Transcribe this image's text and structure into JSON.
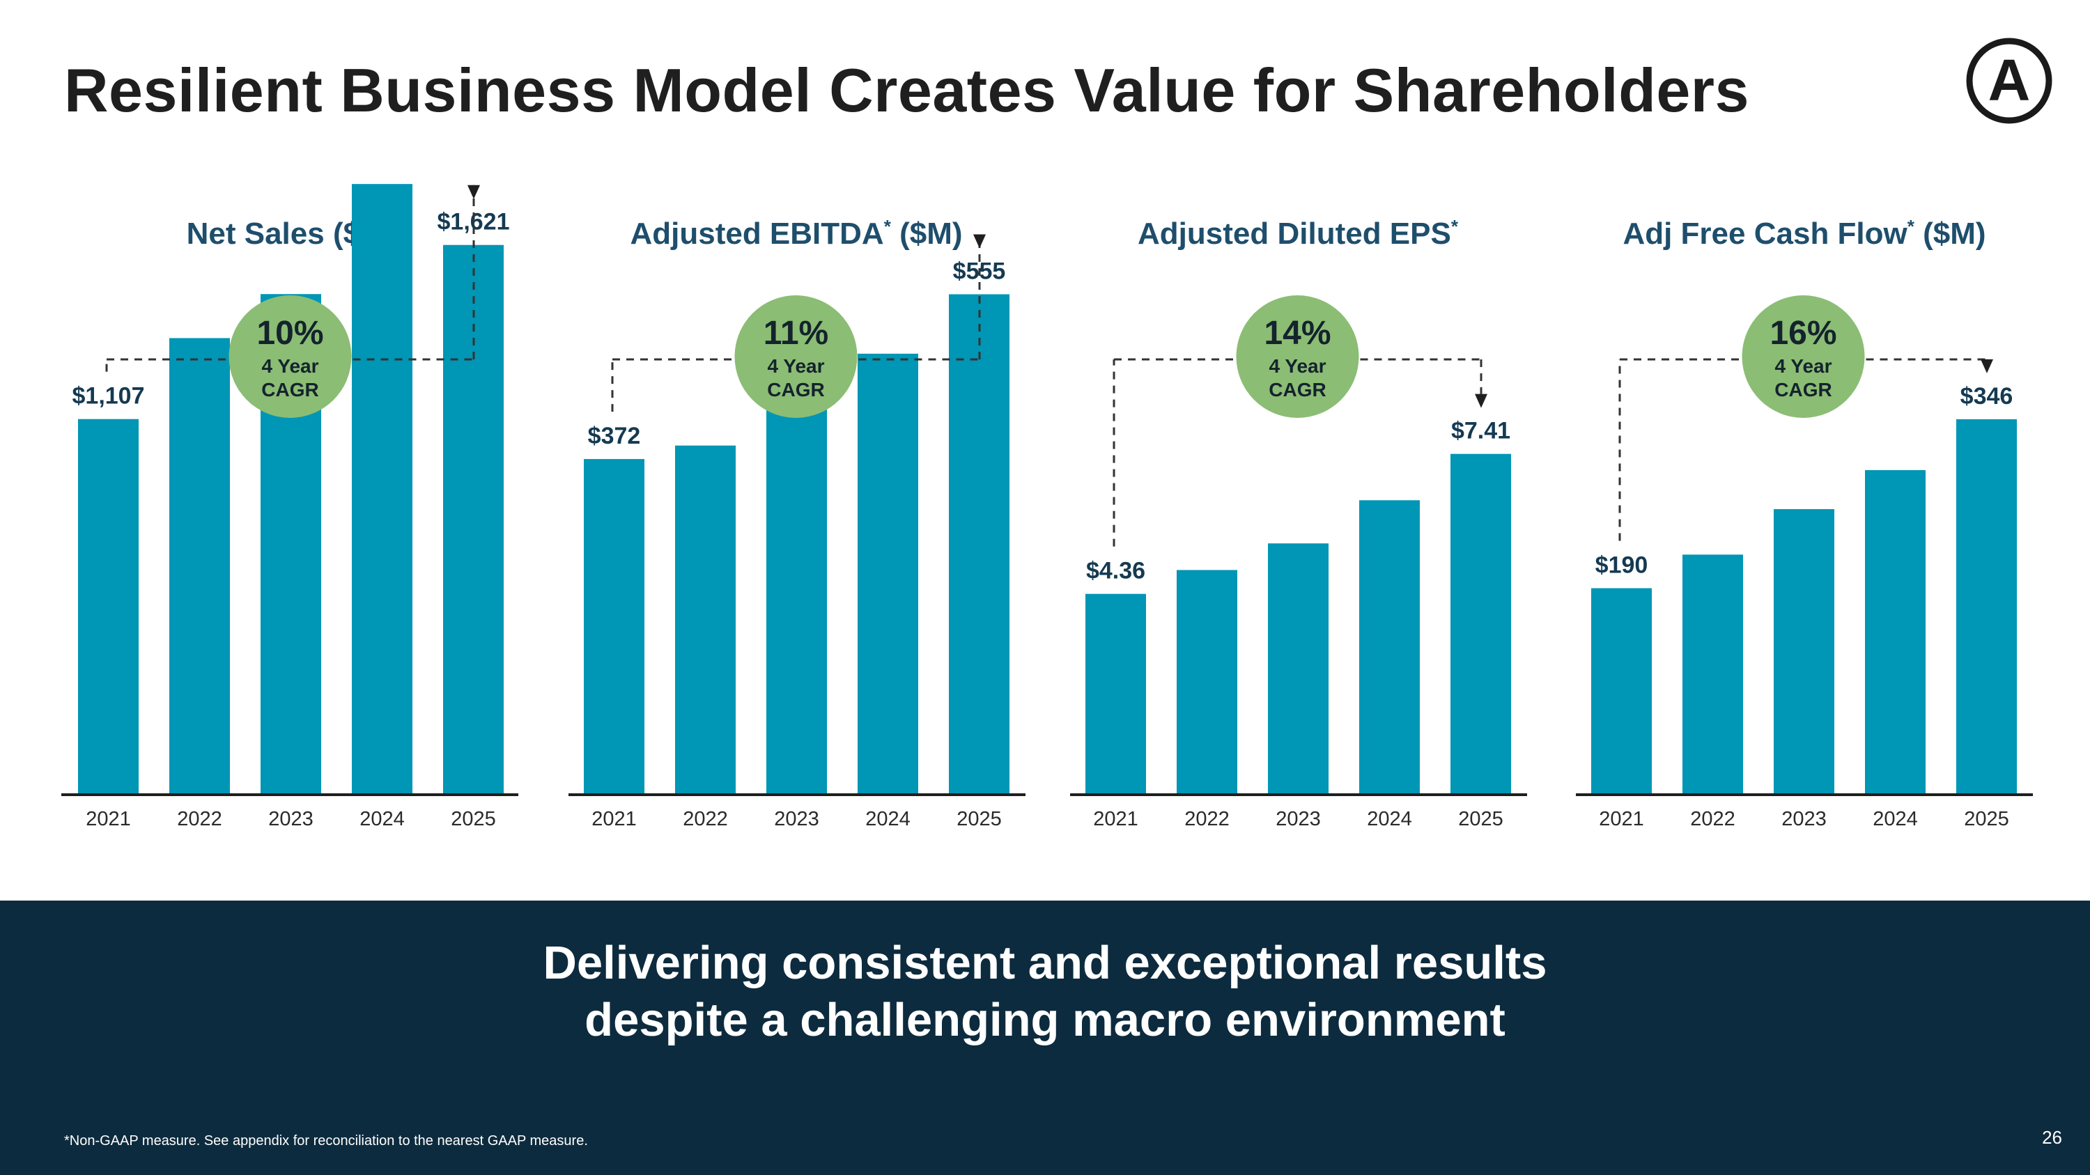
{
  "slide": {
    "title": "Resilient Business Model Creates Value for Shareholders",
    "banner_line1": "Delivering consistent and exceptional results",
    "banner_line2": "despite a challenging macro environment",
    "footnote": "*Non-GAAP measure. See  appendix for reconciliation to the nearest GAAP measure.",
    "page_number": "26",
    "logo_letter": "A"
  },
  "colors": {
    "bar": "#0096b5",
    "title_text": "#1e4e6c",
    "badge": "#8bbd74",
    "banner": "#0d2b3e",
    "axis": "#1f1f1f"
  },
  "chart_data": [
    {
      "type": "bar",
      "title": "Net Sales ($M)",
      "categories": [
        "2021",
        "2022",
        "2023",
        "2024",
        "2025"
      ],
      "values": [
        1107,
        1346,
        1476,
        1801,
        1621
      ],
      "value_labels": [
        "$1,107",
        "",
        "",
        "",
        "$1,621"
      ],
      "cagr": {
        "value": "10%",
        "line1": "4 Year",
        "line2": "CAGR"
      }
    },
    {
      "type": "bar",
      "title": "Adjusted EBITDA",
      "title_mark": "*",
      "title_suffix": " ($M)",
      "categories": [
        "2021",
        "2022",
        "2023",
        "2024",
        "2025"
      ],
      "values": [
        372,
        387,
        433,
        489,
        555
      ],
      "value_labels": [
        "$372",
        "",
        "",
        "",
        "$555"
      ],
      "cagr": {
        "value": "11%",
        "line1": "4 Year",
        "line2": "CAGR"
      }
    },
    {
      "type": "bar",
      "title": "Adjusted Diluted EPS",
      "title_mark": "*",
      "title_suffix": "",
      "categories": [
        "2021",
        "2022",
        "2023",
        "2024",
        "2025"
      ],
      "values": [
        4.36,
        4.88,
        5.46,
        6.4,
        7.41
      ],
      "value_labels": [
        "$4.36",
        "",
        "",
        "",
        "$7.41"
      ],
      "cagr": {
        "value": "14%",
        "line1": "4 Year",
        "line2": "CAGR"
      }
    },
    {
      "type": "bar",
      "title": "Adj Free Cash Flow",
      "title_mark": "*",
      "title_suffix": " ($M)",
      "categories": [
        "2021",
        "2022",
        "2023",
        "2024",
        "2025"
      ],
      "values": [
        190,
        221,
        263,
        299,
        346
      ],
      "value_labels": [
        "$190",
        "",
        "",
        "",
        "$346"
      ],
      "cagr": {
        "value": "16%",
        "line1": "4 Year",
        "line2": "CAGR"
      }
    }
  ]
}
